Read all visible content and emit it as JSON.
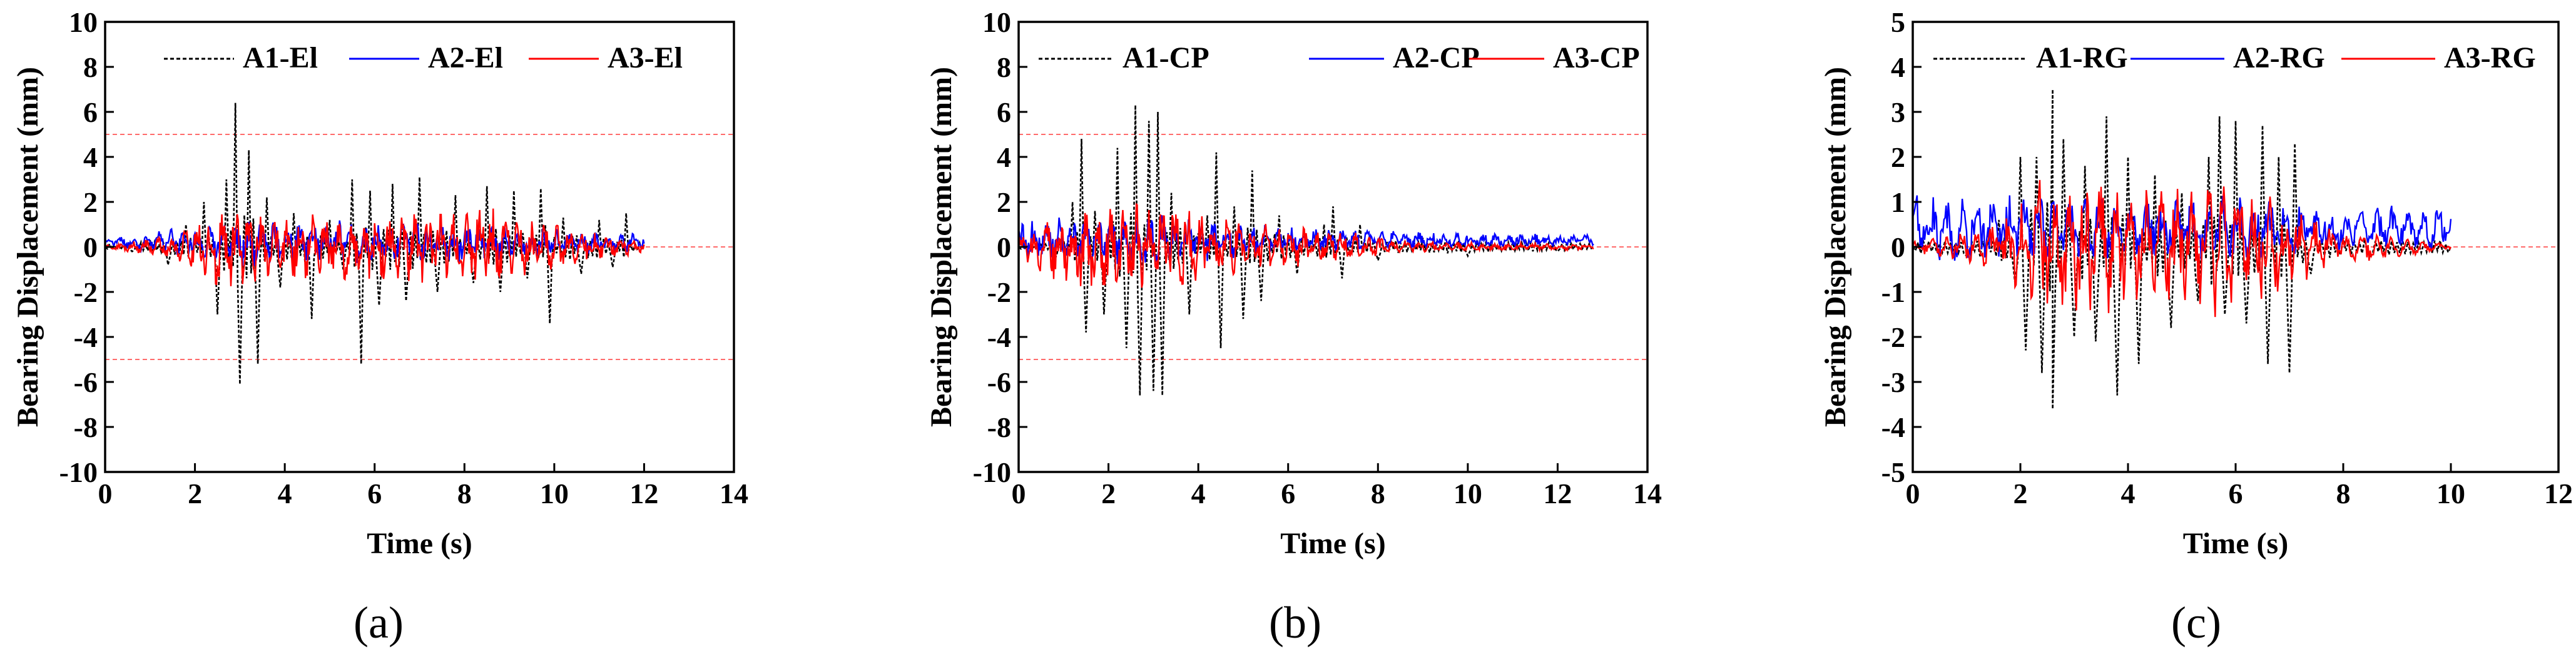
{
  "chart_data": [
    {
      "type": "line",
      "panel_label": "(a)",
      "xlabel": "Time (s)",
      "ylabel": "Bearing Displacement (mm)",
      "xlim": [
        0,
        14
      ],
      "ylim": [
        -10,
        10
      ],
      "xticks": [
        0,
        2,
        4,
        6,
        8,
        10,
        12,
        14
      ],
      "yticks": [
        -10,
        -8,
        -6,
        -4,
        -2,
        0,
        2,
        4,
        6,
        8,
        10
      ],
      "reference_lines": [
        5,
        0,
        -5
      ],
      "legend_position": "top",
      "duration": 12.0,
      "series": [
        {
          "name": "A1-El",
          "color": "#000000",
          "dash": "dashed",
          "peaks": [
            [
              0.0,
              0.0
            ],
            [
              0.6,
              -0.2
            ],
            [
              1.0,
              0.3
            ],
            [
              1.4,
              -0.8
            ],
            [
              1.8,
              1.0
            ],
            [
              2.2,
              2.0
            ],
            [
              2.5,
              -3.0
            ],
            [
              2.7,
              3.0
            ],
            [
              2.9,
              6.4
            ],
            [
              3.0,
              -6.1
            ],
            [
              3.2,
              4.3
            ],
            [
              3.4,
              -5.2
            ],
            [
              3.6,
              2.2
            ],
            [
              3.9,
              -1.8
            ],
            [
              4.2,
              1.5
            ],
            [
              4.6,
              -3.2
            ],
            [
              5.0,
              1.2
            ],
            [
              5.3,
              -1.0
            ],
            [
              5.5,
              3.0
            ],
            [
              5.7,
              -5.2
            ],
            [
              5.9,
              2.5
            ],
            [
              6.1,
              -2.6
            ],
            [
              6.4,
              2.8
            ],
            [
              6.7,
              -2.4
            ],
            [
              7.0,
              3.1
            ],
            [
              7.4,
              -2.0
            ],
            [
              7.8,
              2.3
            ],
            [
              8.2,
              -1.6
            ],
            [
              8.5,
              2.7
            ],
            [
              8.8,
              -2.0
            ],
            [
              9.1,
              2.5
            ],
            [
              9.4,
              -1.4
            ],
            [
              9.7,
              2.6
            ],
            [
              9.9,
              -3.4
            ],
            [
              10.2,
              1.3
            ],
            [
              10.6,
              -1.2
            ],
            [
              11.0,
              1.2
            ],
            [
              11.3,
              -0.9
            ],
            [
              11.6,
              1.5
            ],
            [
              12.0,
              0.1
            ]
          ]
        },
        {
          "name": "A2-El",
          "color": "#0000ff",
          "dash": "solid",
          "base": 0.2,
          "amp": [
            [
              0.0,
              0.1
            ],
            [
              2.0,
              0.6
            ],
            [
              3.0,
              0.9
            ],
            [
              4.0,
              0.8
            ],
            [
              6.0,
              0.8
            ],
            [
              8.0,
              0.7
            ],
            [
              10.0,
              0.5
            ],
            [
              12.0,
              0.3
            ]
          ]
        },
        {
          "name": "A3-El",
          "color": "#ff0000",
          "dash": "solid",
          "base": 0.0,
          "amp": [
            [
              0.0,
              0.05
            ],
            [
              1.5,
              0.4
            ],
            [
              2.9,
              1.8
            ],
            [
              3.5,
              1.0
            ],
            [
              5.0,
              1.2
            ],
            [
              6.0,
              1.2
            ],
            [
              8.5,
              1.4
            ],
            [
              10.0,
              0.8
            ],
            [
              12.0,
              0.2
            ]
          ]
        }
      ]
    },
    {
      "type": "line",
      "panel_label": "(b)",
      "xlabel": "Time (s)",
      "ylabel": "Bearing Displacement (mm)",
      "xlim": [
        0,
        14
      ],
      "ylim": [
        -10,
        10
      ],
      "xticks": [
        0,
        2,
        4,
        6,
        8,
        10,
        12,
        14
      ],
      "yticks": [
        -10,
        -8,
        -6,
        -4,
        -2,
        0,
        2,
        4,
        6,
        8,
        10
      ],
      "reference_lines": [
        5,
        0,
        -5
      ],
      "legend_position": "top",
      "duration": 12.8,
      "series": [
        {
          "name": "A1-CP",
          "color": "#000000",
          "dash": "dashed",
          "peaks": [
            [
              0.0,
              0.0
            ],
            [
              0.8,
              -0.6
            ],
            [
              1.2,
              2.0
            ],
            [
              1.4,
              4.8
            ],
            [
              1.5,
              -3.8
            ],
            [
              1.7,
              1.6
            ],
            [
              1.9,
              -3.0
            ],
            [
              2.2,
              4.4
            ],
            [
              2.4,
              -4.5
            ],
            [
              2.6,
              6.3
            ],
            [
              2.7,
              -6.6
            ],
            [
              2.9,
              5.6
            ],
            [
              3.0,
              -6.4
            ],
            [
              3.1,
              6.0
            ],
            [
              3.2,
              -6.6
            ],
            [
              3.4,
              2.4
            ],
            [
              3.8,
              -3.0
            ],
            [
              4.2,
              1.4
            ],
            [
              4.4,
              4.2
            ],
            [
              4.5,
              -4.5
            ],
            [
              4.8,
              1.8
            ],
            [
              5.0,
              -3.2
            ],
            [
              5.2,
              3.4
            ],
            [
              5.4,
              -2.4
            ],
            [
              5.8,
              1.4
            ],
            [
              6.2,
              -1.2
            ],
            [
              6.8,
              1.0
            ],
            [
              7.0,
              1.8
            ],
            [
              7.2,
              -1.4
            ],
            [
              7.6,
              1.0
            ],
            [
              8.0,
              -0.6
            ],
            [
              9.0,
              0.4
            ],
            [
              10.0,
              -0.4
            ],
            [
              11.0,
              0.2
            ],
            [
              12.0,
              -0.2
            ],
            [
              12.8,
              0.0
            ]
          ]
        },
        {
          "name": "A2-CP",
          "color": "#0000ff",
          "dash": "solid",
          "base": 0.3,
          "amp": [
            [
              0.0,
              0.7
            ],
            [
              2.0,
              0.9
            ],
            [
              3.0,
              0.9
            ],
            [
              5.0,
              0.6
            ],
            [
              7.0,
              0.4
            ],
            [
              9.0,
              0.3
            ],
            [
              12.8,
              0.2
            ]
          ]
        },
        {
          "name": "A3-CP",
          "color": "#ff0000",
          "dash": "solid",
          "base": 0.0,
          "amp": [
            [
              0.0,
              0.4
            ],
            [
              1.3,
              1.6
            ],
            [
              2.5,
              1.6
            ],
            [
              3.5,
              1.5
            ],
            [
              4.5,
              1.0
            ],
            [
              6.0,
              0.8
            ],
            [
              7.5,
              0.5
            ],
            [
              8.5,
              0.2
            ],
            [
              12.8,
              0.1
            ]
          ]
        }
      ]
    },
    {
      "type": "line",
      "panel_label": "(c)",
      "xlabel": "Time (s)",
      "ylabel": "Bearing Displacement (mm)",
      "xlim": [
        0,
        12
      ],
      "ylim": [
        -5,
        5
      ],
      "xticks": [
        0,
        2,
        4,
        6,
        8,
        10,
        12
      ],
      "yticks": [
        -5,
        -4,
        -3,
        -2,
        -1,
        0,
        1,
        2,
        3,
        4,
        5
      ],
      "reference_lines": [
        0
      ],
      "legend_position": "top",
      "duration": 10.0,
      "series": [
        {
          "name": "A1-RG",
          "color": "#000000",
          "dash": "dashed",
          "peaks": [
            [
              0.0,
              0.0
            ],
            [
              1.0,
              -0.2
            ],
            [
              1.6,
              0.6
            ],
            [
              1.9,
              -0.8
            ],
            [
              2.0,
              2.0
            ],
            [
              2.1,
              -2.3
            ],
            [
              2.3,
              2.0
            ],
            [
              2.4,
              -2.8
            ],
            [
              2.6,
              3.5
            ],
            [
              2.6,
              -3.6
            ],
            [
              2.8,
              2.4
            ],
            [
              3.0,
              -2.0
            ],
            [
              3.2,
              1.8
            ],
            [
              3.4,
              -2.1
            ],
            [
              3.6,
              2.9
            ],
            [
              3.8,
              -3.3
            ],
            [
              4.0,
              2.0
            ],
            [
              4.2,
              -2.6
            ],
            [
              4.5,
              1.6
            ],
            [
              4.8,
              -1.8
            ],
            [
              5.0,
              1.2
            ],
            [
              5.3,
              -1.2
            ],
            [
              5.5,
              2.0
            ],
            [
              5.7,
              2.9
            ],
            [
              5.8,
              -1.5
            ],
            [
              6.0,
              2.8
            ],
            [
              6.2,
              -1.7
            ],
            [
              6.5,
              2.7
            ],
            [
              6.6,
              -2.6
            ],
            [
              6.8,
              2.0
            ],
            [
              7.0,
              -2.8
            ],
            [
              7.1,
              2.3
            ],
            [
              7.4,
              -0.6
            ],
            [
              7.8,
              0.3
            ],
            [
              8.5,
              -0.2
            ],
            [
              9.5,
              0.1
            ],
            [
              10.0,
              0.0
            ]
          ]
        },
        {
          "name": "A2-RG",
          "color": "#0000ff",
          "dash": "solid",
          "base": 0.4,
          "amp": [
            [
              0.0,
              0.7
            ],
            [
              1.0,
              0.6
            ],
            [
              2.5,
              0.7
            ],
            [
              4.0,
              0.5
            ],
            [
              6.0,
              0.6
            ],
            [
              8.0,
              0.4
            ],
            [
              10.0,
              0.4
            ]
          ]
        },
        {
          "name": "A3-RG",
          "color": "#ff0000",
          "dash": "solid",
          "base": 0.0,
          "amp": [
            [
              0.0,
              0.1
            ],
            [
              1.5,
              0.4
            ],
            [
              2.5,
              1.3
            ],
            [
              3.5,
              1.2
            ],
            [
              5.0,
              1.0
            ],
            [
              5.8,
              1.3
            ],
            [
              7.0,
              0.8
            ],
            [
              8.0,
              0.3
            ],
            [
              10.0,
              0.05
            ]
          ]
        }
      ]
    }
  ]
}
